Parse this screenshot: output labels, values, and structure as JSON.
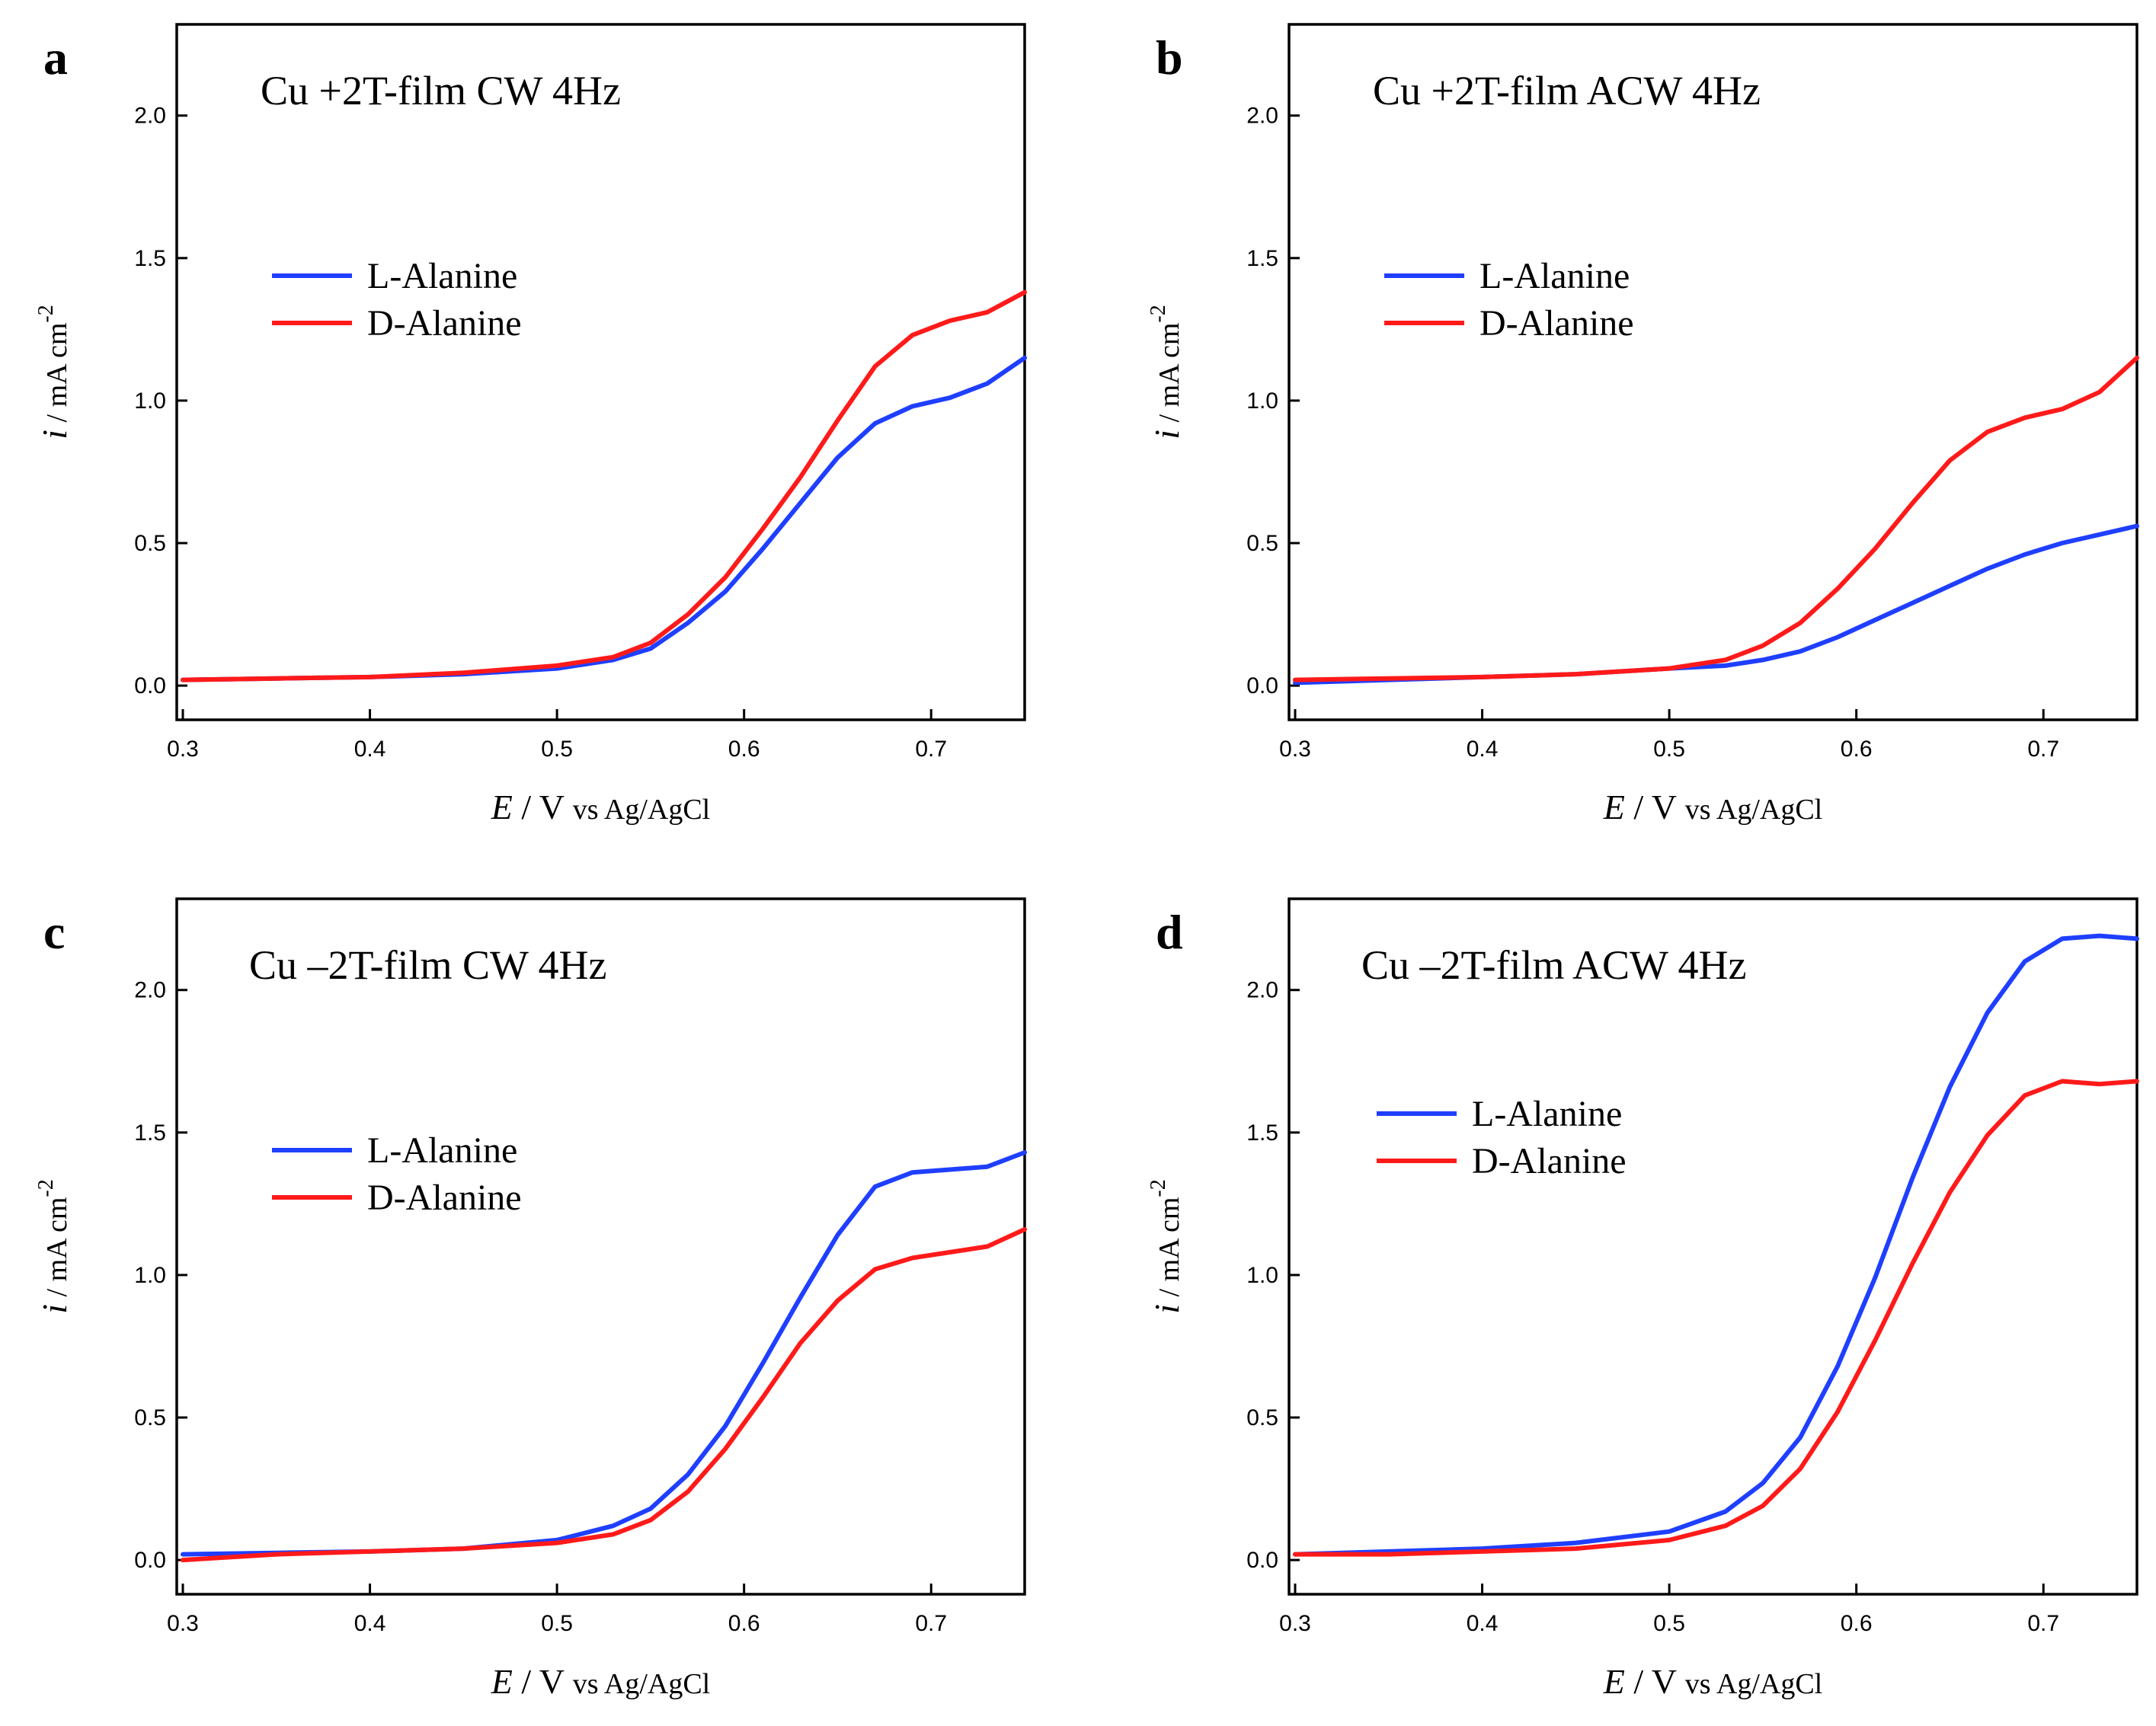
{
  "chart_data": [
    {
      "panel": "a",
      "type": "line",
      "title": "Cu +2T-film  CW 4Hz",
      "xlabel": "E / V vs Ag/AgCl",
      "ylabel": "i / mA cm-2",
      "xlim": [
        0.3,
        0.75
      ],
      "ylim": [
        -0.12,
        2.32
      ],
      "xticks": [
        0.3,
        0.4,
        0.5,
        0.6,
        0.7
      ],
      "yticks": [
        0.0,
        0.5,
        1.0,
        1.5,
        2.0
      ],
      "xtick_labels": [
        "0.3",
        "0.4",
        "0.5",
        "0.6",
        "0.7"
      ],
      "ytick_labels": [
        "0.0",
        "0.5",
        "1.0",
        "1.5",
        "2.0"
      ],
      "legend_position": "left-middle",
      "series": [
        {
          "name": "L-Alanine",
          "color": "#1f3fff",
          "x": [
            0.3,
            0.35,
            0.4,
            0.45,
            0.5,
            0.53,
            0.55,
            0.57,
            0.59,
            0.61,
            0.63,
            0.65,
            0.67,
            0.69,
            0.71,
            0.73,
            0.75
          ],
          "y": [
            0.02,
            0.025,
            0.03,
            0.04,
            0.06,
            0.09,
            0.13,
            0.22,
            0.33,
            0.48,
            0.64,
            0.8,
            0.92,
            0.98,
            1.01,
            1.06,
            1.15
          ]
        },
        {
          "name": "D-Alanine",
          "color": "#ff1a1a",
          "x": [
            0.3,
            0.35,
            0.4,
            0.45,
            0.5,
            0.53,
            0.55,
            0.57,
            0.59,
            0.61,
            0.63,
            0.65,
            0.67,
            0.69,
            0.71,
            0.73,
            0.75
          ],
          "y": [
            0.02,
            0.025,
            0.03,
            0.045,
            0.07,
            0.1,
            0.15,
            0.25,
            0.38,
            0.55,
            0.73,
            0.93,
            1.12,
            1.23,
            1.28,
            1.31,
            1.38
          ]
        }
      ]
    },
    {
      "panel": "b",
      "type": "line",
      "title": "Cu +2T-film ACW 4Hz",
      "xlabel": "E / V vs Ag/AgCl",
      "ylabel": "i / mA cm-2",
      "xlim": [
        0.3,
        0.75
      ],
      "ylim": [
        -0.12,
        2.32
      ],
      "xticks": [
        0.3,
        0.4,
        0.5,
        0.6,
        0.7
      ],
      "yticks": [
        0.0,
        0.5,
        1.0,
        1.5,
        2.0
      ],
      "xtick_labels": [
        "0.3",
        "0.4",
        "0.5",
        "0.6",
        "0.7"
      ],
      "ytick_labels": [
        "0.0",
        "0.5",
        "1.0",
        "1.5",
        "2.0"
      ],
      "legend_position": "left-middle",
      "series": [
        {
          "name": "L-Alanine",
          "color": "#1f3fff",
          "x": [
            0.3,
            0.35,
            0.4,
            0.45,
            0.5,
            0.53,
            0.55,
            0.57,
            0.59,
            0.61,
            0.63,
            0.65,
            0.67,
            0.69,
            0.71,
            0.73,
            0.75
          ],
          "y": [
            0.01,
            0.02,
            0.03,
            0.04,
            0.06,
            0.07,
            0.09,
            0.12,
            0.17,
            0.23,
            0.29,
            0.35,
            0.41,
            0.46,
            0.5,
            0.53,
            0.56
          ]
        },
        {
          "name": "D-Alanine",
          "color": "#ff1a1a",
          "x": [
            0.3,
            0.35,
            0.4,
            0.45,
            0.5,
            0.53,
            0.55,
            0.57,
            0.59,
            0.61,
            0.63,
            0.65,
            0.67,
            0.69,
            0.71,
            0.73,
            0.75
          ],
          "y": [
            0.02,
            0.025,
            0.03,
            0.04,
            0.06,
            0.09,
            0.14,
            0.22,
            0.34,
            0.48,
            0.64,
            0.79,
            0.89,
            0.94,
            0.97,
            1.03,
            1.15
          ]
        }
      ]
    },
    {
      "panel": "c",
      "type": "line",
      "title": "Cu –2T-film  CW 4Hz",
      "xlabel": "E / V vs Ag/AgCl",
      "ylabel": "i / mA cm-2",
      "xlim": [
        0.3,
        0.75
      ],
      "ylim": [
        -0.12,
        2.32
      ],
      "xticks": [
        0.3,
        0.4,
        0.5,
        0.6,
        0.7
      ],
      "yticks": [
        0.0,
        0.5,
        1.0,
        1.5,
        2.0
      ],
      "xtick_labels": [
        "0.3",
        "0.4",
        "0.5",
        "0.6",
        "0.7"
      ],
      "ytick_labels": [
        "0.0",
        "0.5",
        "1.0",
        "1.5",
        "2.0"
      ],
      "legend_position": "left-middle",
      "series": [
        {
          "name": "L-Alanine",
          "color": "#1f3fff",
          "x": [
            0.3,
            0.35,
            0.4,
            0.45,
            0.5,
            0.53,
            0.55,
            0.57,
            0.59,
            0.61,
            0.63,
            0.65,
            0.67,
            0.69,
            0.71,
            0.73,
            0.75
          ],
          "y": [
            0.02,
            0.025,
            0.03,
            0.04,
            0.07,
            0.12,
            0.18,
            0.3,
            0.47,
            0.69,
            0.92,
            1.14,
            1.31,
            1.36,
            1.37,
            1.38,
            1.43
          ]
        },
        {
          "name": "D-Alanine",
          "color": "#ff1a1a",
          "x": [
            0.3,
            0.35,
            0.4,
            0.45,
            0.5,
            0.53,
            0.55,
            0.57,
            0.59,
            0.61,
            0.63,
            0.65,
            0.67,
            0.69,
            0.71,
            0.73,
            0.75
          ],
          "y": [
            0.0,
            0.02,
            0.03,
            0.04,
            0.06,
            0.09,
            0.14,
            0.24,
            0.39,
            0.57,
            0.76,
            0.91,
            1.02,
            1.06,
            1.08,
            1.1,
            1.16
          ]
        }
      ]
    },
    {
      "panel": "d",
      "type": "line",
      "title": "Cu –2T-film  ACW 4Hz",
      "xlabel": "E / V vs Ag/AgCl",
      "ylabel": "i / mA cm-2",
      "xlim": [
        0.3,
        0.75
      ],
      "ylim": [
        -0.12,
        2.32
      ],
      "xticks": [
        0.3,
        0.4,
        0.5,
        0.6,
        0.7
      ],
      "yticks": [
        0.0,
        0.5,
        1.0,
        1.5,
        2.0
      ],
      "xtick_labels": [
        "0.3",
        "0.4",
        "0.5",
        "0.6",
        "0.7"
      ],
      "ytick_labels": [
        "0.0",
        "0.5",
        "1.0",
        "1.5",
        "2.0"
      ],
      "legend_position": "left-middle",
      "series": [
        {
          "name": "L-Alanine",
          "color": "#1f3fff",
          "x": [
            0.3,
            0.35,
            0.4,
            0.45,
            0.5,
            0.53,
            0.55,
            0.57,
            0.59,
            0.61,
            0.63,
            0.65,
            0.67,
            0.69,
            0.71,
            0.73,
            0.75
          ],
          "y": [
            0.02,
            0.03,
            0.04,
            0.06,
            0.1,
            0.17,
            0.27,
            0.43,
            0.68,
            0.99,
            1.34,
            1.66,
            1.92,
            2.1,
            2.18,
            2.19,
            2.18
          ]
        },
        {
          "name": "D-Alanine",
          "color": "#ff1a1a",
          "x": [
            0.3,
            0.35,
            0.4,
            0.45,
            0.5,
            0.53,
            0.55,
            0.57,
            0.59,
            0.61,
            0.63,
            0.65,
            0.67,
            0.69,
            0.71,
            0.73,
            0.75
          ],
          "y": [
            0.02,
            0.02,
            0.03,
            0.04,
            0.07,
            0.12,
            0.19,
            0.32,
            0.52,
            0.77,
            1.04,
            1.29,
            1.49,
            1.63,
            1.68,
            1.67,
            1.68
          ]
        }
      ]
    }
  ]
}
